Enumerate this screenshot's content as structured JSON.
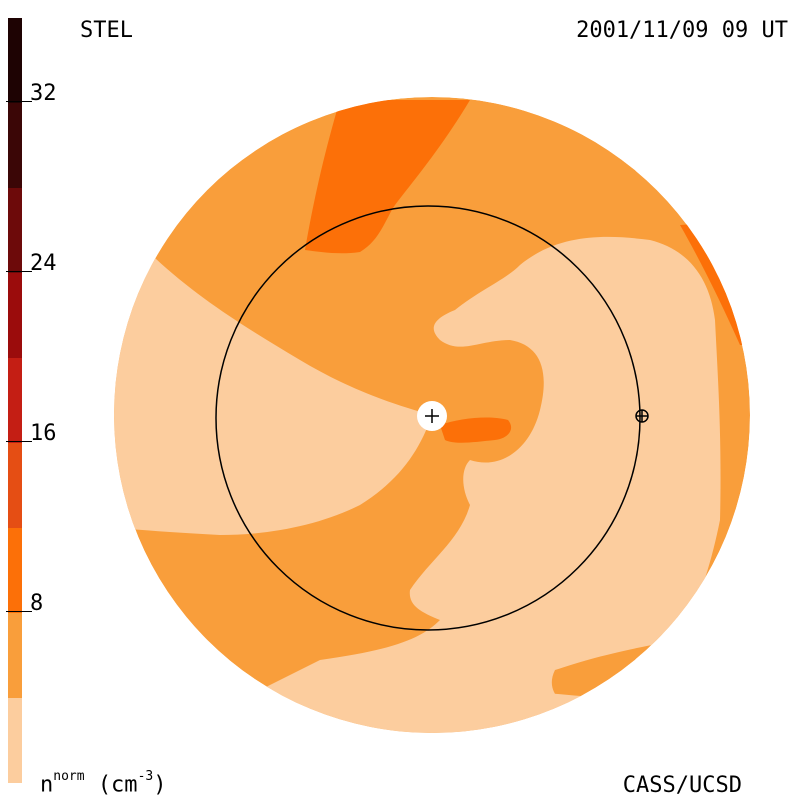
{
  "header": {
    "left_title": "STEL",
    "right_title": "2001/11/09 09 UT"
  },
  "footer": {
    "credit": "CASS/UCSD",
    "unit_symbol": "n",
    "unit_super": "norm",
    "unit_open": "(cm",
    "unit_exp": "-3",
    "unit_close": ")"
  },
  "colorbar": {
    "ticks": [
      "32",
      "24",
      "16",
      "8"
    ],
    "colors": [
      "#fccd9e",
      "#f99e3b",
      "#fc7008",
      "#e54e14",
      "#c41e14",
      "#9b0c0c",
      "#6d0a0a",
      "#3b0606",
      "#1e0303"
    ]
  },
  "map": {
    "colors": {
      "light": "#fccd9e",
      "medium": "#f99e3b",
      "dark": "#fc7008",
      "earth_orbit": "#000000",
      "sun_marker": "#ffffff"
    },
    "sun_symbol": "+",
    "earth_symbol": "⊕"
  }
}
